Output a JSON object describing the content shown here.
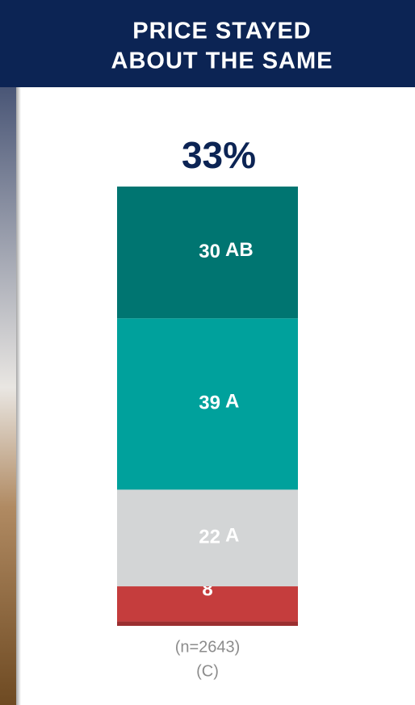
{
  "chart_data": {
    "type": "stacked_bar",
    "title_lines": [
      "PRICE STAYED",
      "ABOUT THE SAME"
    ],
    "headline": "33%",
    "segments": [
      {
        "value": 1,
        "color": "#9b2f30"
      },
      {
        "value": 8,
        "color": "#c53d3d"
      },
      {
        "value": 22,
        "color": "#d3d5d6",
        "sig": "A"
      },
      {
        "value": 39,
        "color": "#00a19c",
        "sig": "A"
      },
      {
        "value": 30,
        "color": "#007571",
        "sig": "AB"
      }
    ],
    "ylim": [
      0,
      100
    ],
    "sample": "(n=2643)",
    "group": "(C)"
  }
}
